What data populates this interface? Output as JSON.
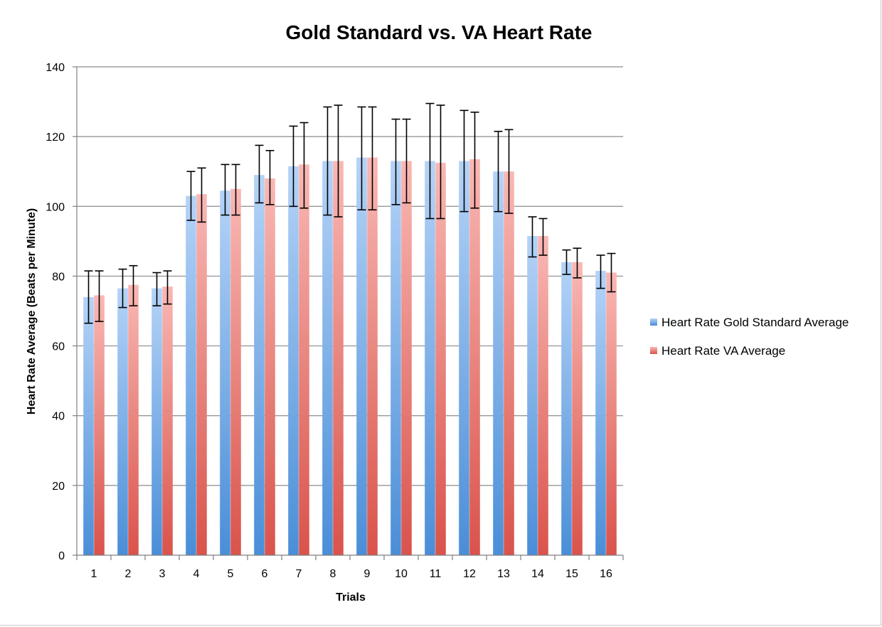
{
  "chart_data": {
    "type": "bar",
    "title": "Gold Standard vs. VA Heart Rate",
    "xlabel": "Trials",
    "ylabel": "Heart Rate Average (Beats per Minute)",
    "categories": [
      "1",
      "2",
      "3",
      "4",
      "5",
      "6",
      "7",
      "8",
      "9",
      "10",
      "11",
      "12",
      "13",
      "14",
      "15",
      "16"
    ],
    "ylim": [
      0,
      140
    ],
    "yticks": [
      0,
      20,
      40,
      60,
      80,
      100,
      120,
      140
    ],
    "grid": true,
    "legend_position": "right",
    "series": [
      {
        "name": "Heart Rate Gold Standard Average",
        "color_top": "#b5d3f7",
        "color_bottom": "#4a8ed8",
        "values": [
          74,
          76.5,
          76.5,
          103,
          104.5,
          109,
          111.5,
          113,
          114,
          113,
          113,
          113,
          110,
          91.5,
          84,
          81.5
        ],
        "error_low": [
          66.5,
          71,
          71.5,
          96,
          97.5,
          101,
          100,
          97.5,
          99,
          100.5,
          96.5,
          98.5,
          98.5,
          85.5,
          80.5,
          76.5
        ],
        "error_high": [
          81.5,
          82,
          81,
          110,
          112,
          117.5,
          123,
          128.5,
          128.5,
          125,
          129.5,
          127.5,
          121.5,
          97,
          87.5,
          86
        ]
      },
      {
        "name": "Heart Rate VA Average",
        "color_top": "#f9b8b4",
        "color_bottom": "#d9534b",
        "values": [
          74.5,
          77.5,
          77,
          103.5,
          105,
          108,
          112,
          113,
          114,
          113,
          112.5,
          113.5,
          110,
          91.5,
          84,
          81
        ],
        "error_low": [
          67,
          71.5,
          72,
          95.5,
          97.5,
          100.5,
          99.5,
          97,
          99,
          101,
          96.5,
          99.5,
          98,
          86,
          79.5,
          75.5
        ],
        "error_high": [
          81.5,
          83,
          81.5,
          111,
          112,
          116,
          124,
          129,
          128.5,
          125,
          129,
          127,
          122,
          96.5,
          88,
          86.5
        ]
      }
    ]
  }
}
